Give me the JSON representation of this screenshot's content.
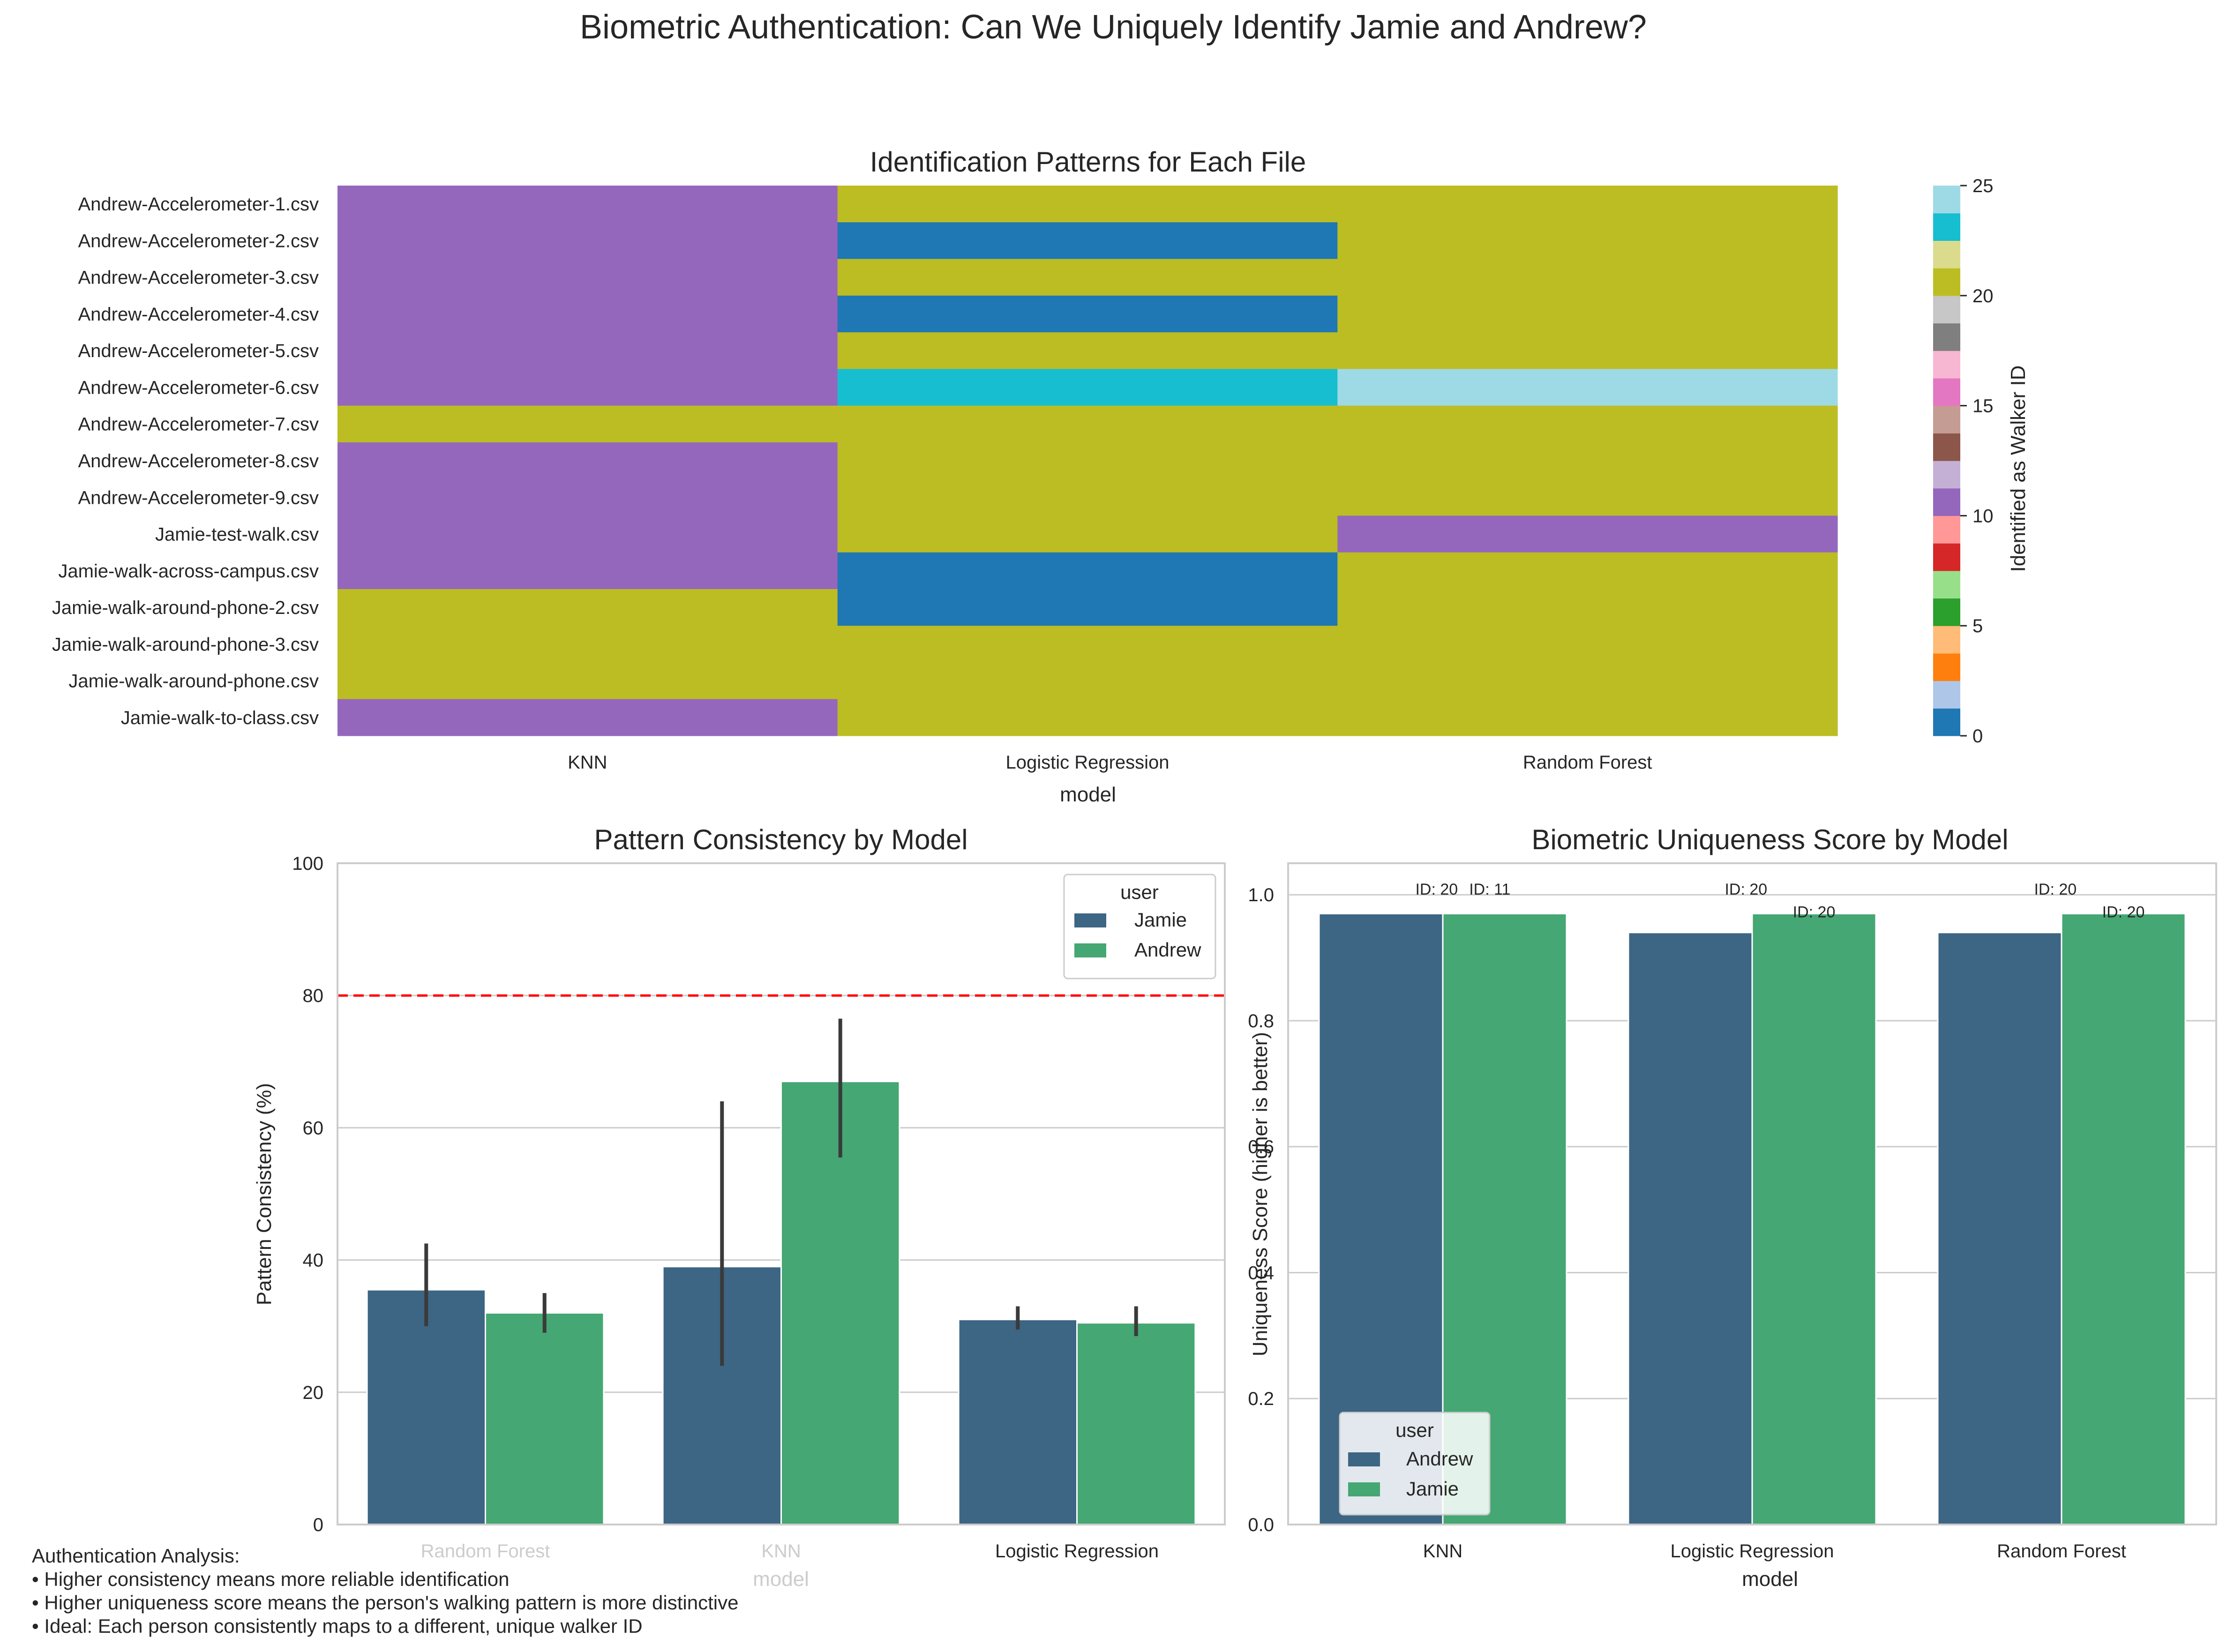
{
  "figure": {
    "title": "Biometric Authentication: Can We Uniquely Identify Jamie and Andrew?",
    "notes": [
      "Authentication Analysis:",
      "• Higher consistency means more reliable identification",
      "• Higher uniqueness score means the person's walking pattern is more distinctive",
      "• Ideal: Each person consistently maps to a different, unique walker ID"
    ]
  },
  "colors": {
    "jamie_blue": "#3d6584",
    "andrew_green": "#45a773",
    "threshold_red": "#ff0000",
    "grid": "#cccccc",
    "errorbar": "#3a3a3a",
    "tab20": [
      "#1f77b4",
      "#aec7e8",
      "#ff7f0e",
      "#ffbb78",
      "#2ca02c",
      "#98df8a",
      "#d62728",
      "#ff9896",
      "#9467bd",
      "#c5b0d5",
      "#8c564b",
      "#c49c94",
      "#e377c2",
      "#f7b6d2",
      "#7f7f7f",
      "#c7c7c7",
      "#bcbd22",
      "#dbdb8d",
      "#17becf",
      "#9edae5"
    ]
  },
  "chart_data": [
    {
      "type": "heatmap",
      "title": "Identification Patterns for Each File",
      "xlabel": "model",
      "ylabel": "",
      "x_categories": [
        "KNN",
        "Logistic Regression",
        "Random Forest"
      ],
      "y_categories": [
        "Andrew-Accelerometer-1.csv",
        "Andrew-Accelerometer-2.csv",
        "Andrew-Accelerometer-3.csv",
        "Andrew-Accelerometer-4.csv",
        "Andrew-Accelerometer-5.csv",
        "Andrew-Accelerometer-6.csv",
        "Andrew-Accelerometer-7.csv",
        "Andrew-Accelerometer-8.csv",
        "Andrew-Accelerometer-9.csv",
        "Jamie-test-walk.csv",
        "Jamie-walk-across-campus.csv",
        "Jamie-walk-around-phone-2.csv",
        "Jamie-walk-around-phone-3.csv",
        "Jamie-walk-around-phone.csv",
        "Jamie-walk-to-class.csv"
      ],
      "values": [
        [
          11,
          20,
          20
        ],
        [
          11,
          0,
          20
        ],
        [
          11,
          20,
          20
        ],
        [
          11,
          0,
          21
        ],
        [
          11,
          20,
          20
        ],
        [
          11,
          23,
          24
        ],
        [
          20,
          20,
          20
        ],
        [
          11,
          20,
          20
        ],
        [
          11,
          20,
          20
        ],
        [
          11,
          20,
          11
        ],
        [
          11,
          0,
          20
        ],
        [
          20,
          0,
          20
        ],
        [
          20,
          20,
          20
        ],
        [
          20,
          20,
          20
        ],
        [
          11,
          20,
          20
        ]
      ],
      "colorbar": {
        "label": "Identified as Walker ID",
        "min": 0,
        "max": 25,
        "ticks": [
          "0",
          "5",
          "10",
          "15",
          "20",
          "25"
        ],
        "colormap": "tab20"
      }
    },
    {
      "type": "bar",
      "title": "Pattern Consistency by Model",
      "xlabel": "model",
      "ylabel": "Pattern Consistency (%)",
      "categories": [
        "Random Forest",
        "KNN",
        "Logistic Regression"
      ],
      "ylim": [
        0,
        100
      ],
      "yticks": [
        "0",
        "20",
        "40",
        "60",
        "80",
        "100"
      ],
      "legend": {
        "title": "user",
        "placement": "top-right"
      },
      "threshold": {
        "value": 80,
        "style": "dashed"
      },
      "series": [
        {
          "name": "Jamie",
          "values": [
            35.5,
            39,
            31
          ],
          "error": [
            [
              30,
              42.5
            ],
            [
              24,
              64
            ],
            [
              29.5,
              33
            ]
          ]
        },
        {
          "name": "Andrew",
          "values": [
            32,
            67,
            30.5
          ],
          "error": [
            [
              29,
              35
            ],
            [
              55.5,
              76.5
            ],
            [
              28.5,
              33
            ]
          ]
        }
      ]
    },
    {
      "type": "bar",
      "title": "Biometric Uniqueness Score by Model",
      "xlabel": "model",
      "ylabel": "Uniqueness Score (higher is better)",
      "categories": [
        "KNN",
        "Logistic Regression",
        "Random Forest"
      ],
      "ylim": [
        0,
        1.05
      ],
      "yticks": [
        "0.0",
        "0.2",
        "0.4",
        "0.6",
        "0.8",
        "1.0"
      ],
      "legend": {
        "title": "user",
        "placement": "bottom-left"
      },
      "series": [
        {
          "name": "Andrew",
          "values": [
            0.97,
            0.94,
            0.94
          ],
          "labels": [
            "ID: 20",
            "ID: 20",
            "ID: 20"
          ]
        },
        {
          "name": "Jamie",
          "values": [
            0.97,
            0.97,
            0.97
          ],
          "labels": [
            "ID: 11",
            "ID: 20",
            "ID: 20"
          ]
        }
      ]
    }
  ]
}
